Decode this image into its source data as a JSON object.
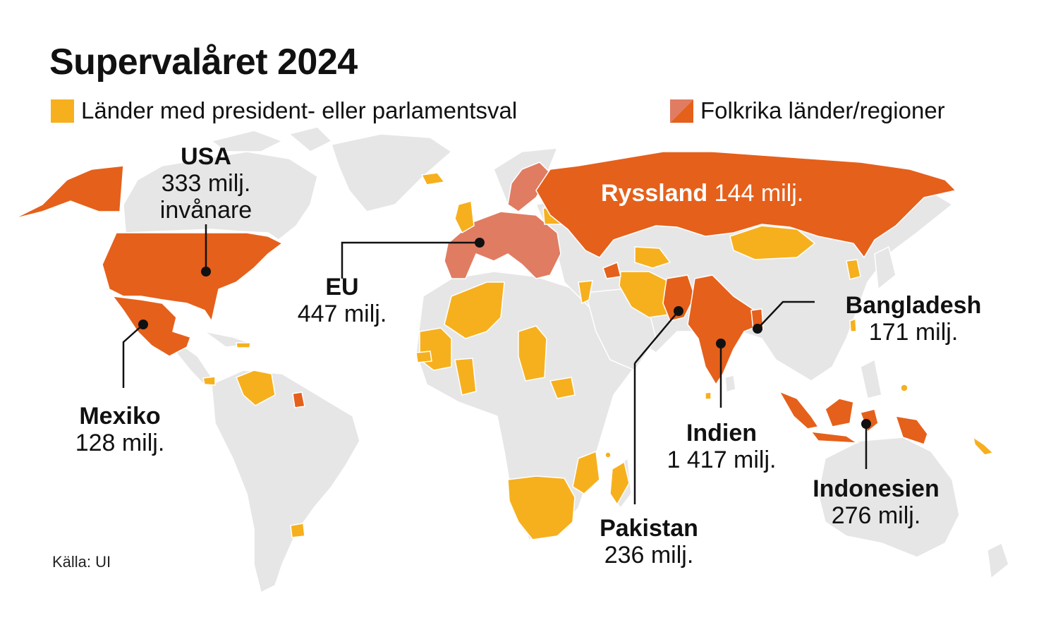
{
  "title": "Supervalåret 2024",
  "colors": {
    "land": "#e6e6e6",
    "border": "#ffffff",
    "election": "#f6b01e",
    "populous": "#e5601b",
    "eu": "#e07c62",
    "leader": "#111111"
  },
  "legend": {
    "election_label": "Länder med president- eller parlamentsval",
    "populous_label": "Folkrika länder/regioner"
  },
  "source": "Källa: UI",
  "labels": {
    "usa": {
      "name": "USA",
      "value": "333 milj.",
      "extra": "invånare"
    },
    "eu": {
      "name": "EU",
      "value": "447 milj."
    },
    "mexico": {
      "name": "Mexiko",
      "value": "128 milj."
    },
    "russia": {
      "name": "Ryssland",
      "value": "144 milj."
    },
    "bangladesh": {
      "name": "Bangladesh",
      "value": "171 milj."
    },
    "india": {
      "name": "Indien",
      "value": "1 417 milj."
    },
    "pakistan": {
      "name": "Pakistan",
      "value": "236 milj."
    },
    "indonesia": {
      "name": "Indonesien",
      "value": "276 milj."
    }
  }
}
